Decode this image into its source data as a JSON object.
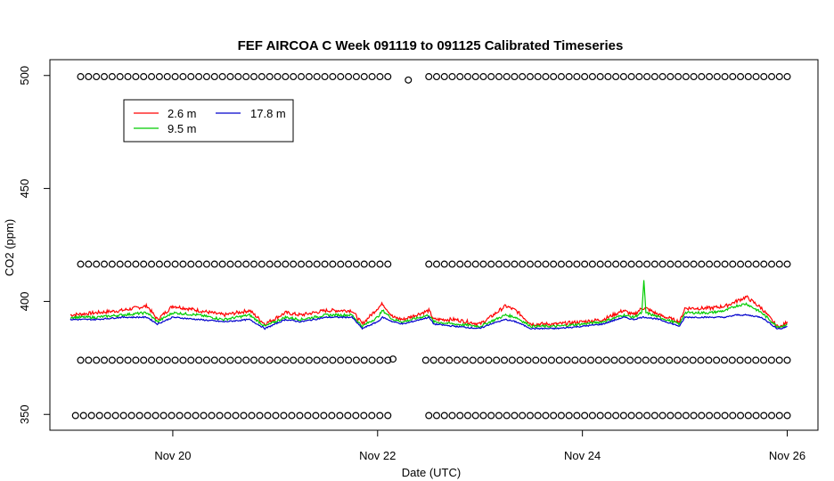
{
  "chart_data": {
    "type": "line",
    "title": "FEF AIRCOA C  Week 091119 to 091125  Calibrated Timeseries",
    "xlabel": "Date (UTC)",
    "ylabel": "CO2 (ppm)",
    "x_unit": "day of November 2009 (UTC)",
    "xlim": [
      18.8,
      26.3
    ],
    "ylim": [
      343,
      507
    ],
    "x_ticks": [
      {
        "value": 20,
        "label": "Nov 20"
      },
      {
        "value": 22,
        "label": "Nov 22"
      },
      {
        "value": 24,
        "label": "Nov 24"
      },
      {
        "value": 26,
        "label": "Nov 26"
      }
    ],
    "y_ticks": [
      {
        "value": 350,
        "label": "350"
      },
      {
        "value": 400,
        "label": "400"
      },
      {
        "value": 450,
        "label": "450"
      },
      {
        "value": 500,
        "label": "500"
      }
    ],
    "grid": false,
    "legend": {
      "placement": "top-left"
    },
    "series": [
      {
        "name": "2.6 m",
        "color": "#ff0000",
        "x": [
          19.0,
          19.25,
          19.5,
          19.75,
          19.85,
          20.0,
          20.25,
          20.5,
          20.75,
          20.9,
          21.1,
          21.25,
          21.5,
          21.75,
          21.85,
          22.0,
          22.05,
          22.15,
          22.25,
          22.5,
          22.55,
          22.75,
          23.0,
          23.1,
          23.25,
          23.35,
          23.5,
          23.75,
          24.0,
          24.2,
          24.4,
          24.5,
          24.58,
          24.62,
          24.75,
          24.95,
          25.0,
          25.25,
          25.4,
          25.5,
          25.6,
          25.75,
          25.9,
          25.95,
          26.0
        ],
        "y": [
          394,
          395,
          396,
          398,
          392,
          398,
          396,
          394,
          396,
          390,
          395,
          394,
          396,
          396,
          390,
          397,
          399,
          393,
          392,
          396,
          392,
          392,
          390,
          393,
          398,
          396,
          390,
          390,
          391,
          392,
          396,
          394,
          397,
          397,
          394,
          391,
          397,
          397,
          398,
          400,
          402,
          397,
          389,
          389,
          391
        ]
      },
      {
        "name": "9.5 m",
        "color": "#00cc00",
        "x": [
          19.0,
          19.25,
          19.5,
          19.75,
          19.85,
          20.0,
          20.25,
          20.5,
          20.75,
          20.9,
          21.1,
          21.25,
          21.5,
          21.75,
          21.85,
          22.0,
          22.05,
          22.15,
          22.25,
          22.5,
          22.55,
          22.75,
          23.0,
          23.1,
          23.25,
          23.35,
          23.5,
          23.75,
          24.0,
          24.2,
          24.4,
          24.5,
          24.58,
          24.6,
          24.62,
          24.75,
          24.95,
          25.0,
          25.25,
          25.4,
          25.5,
          25.6,
          25.75,
          25.9,
          25.95,
          26.0
        ],
        "y": [
          393,
          393,
          394,
          395,
          391,
          395,
          394,
          392,
          394,
          389,
          393,
          392,
          394,
          394,
          389,
          393,
          396,
          392,
          391,
          394,
          391,
          390,
          389,
          391,
          394,
          393,
          389,
          389,
          390,
          391,
          394,
          393,
          395,
          409,
          395,
          393,
          390,
          395,
          395,
          396,
          398,
          399,
          395,
          389,
          389,
          390
        ]
      },
      {
        "name": "17.8 m",
        "color": "#0000cc",
        "x": [
          19.0,
          19.25,
          19.5,
          19.75,
          19.85,
          20.0,
          20.25,
          20.5,
          20.75,
          20.9,
          21.1,
          21.25,
          21.5,
          21.75,
          21.85,
          22.0,
          22.05,
          22.15,
          22.25,
          22.5,
          22.55,
          22.75,
          23.0,
          23.1,
          23.25,
          23.35,
          23.5,
          23.75,
          24.0,
          24.2,
          24.4,
          24.5,
          24.58,
          24.62,
          24.75,
          24.95,
          25.0,
          25.25,
          25.4,
          25.5,
          25.6,
          25.75,
          25.9,
          25.95,
          26.0
        ],
        "y": [
          392,
          392,
          393,
          393,
          390,
          393,
          392,
          391,
          392,
          388,
          392,
          391,
          393,
          393,
          388,
          391,
          393,
          391,
          390,
          393,
          390,
          389,
          388,
          390,
          392,
          391,
          388,
          388,
          389,
          390,
          393,
          392,
          393,
          393,
          392,
          389,
          393,
          393,
          393,
          394,
          394,
          393,
          388,
          388,
          389
        ]
      }
    ],
    "marker_rows": [
      {
        "y": 499.5,
        "x_start": 19.1,
        "x_end": 22.1,
        "count": 40
      },
      {
        "y": 498,
        "x_start": 22.3,
        "x_end": 22.3,
        "count": 1
      },
      {
        "y": 499.5,
        "x_start": 22.5,
        "x_end": 26.0,
        "count": 47
      },
      {
        "y": 416.5,
        "x_start": 19.1,
        "x_end": 22.1,
        "count": 40
      },
      {
        "y": 416.5,
        "x_start": 22.5,
        "x_end": 26.0,
        "count": 47
      },
      {
        "y": 374,
        "x_start": 19.1,
        "x_end": 22.1,
        "count": 40
      },
      {
        "y": 374.5,
        "x_start": 22.15,
        "x_end": 22.15,
        "count": 1
      },
      {
        "y": 374,
        "x_start": 22.47,
        "x_end": 26.0,
        "count": 47
      },
      {
        "y": 349.5,
        "x_start": 19.05,
        "x_end": 22.1,
        "count": 40
      },
      {
        "y": 349.5,
        "x_start": 22.5,
        "x_end": 26.0,
        "count": 47
      }
    ]
  }
}
